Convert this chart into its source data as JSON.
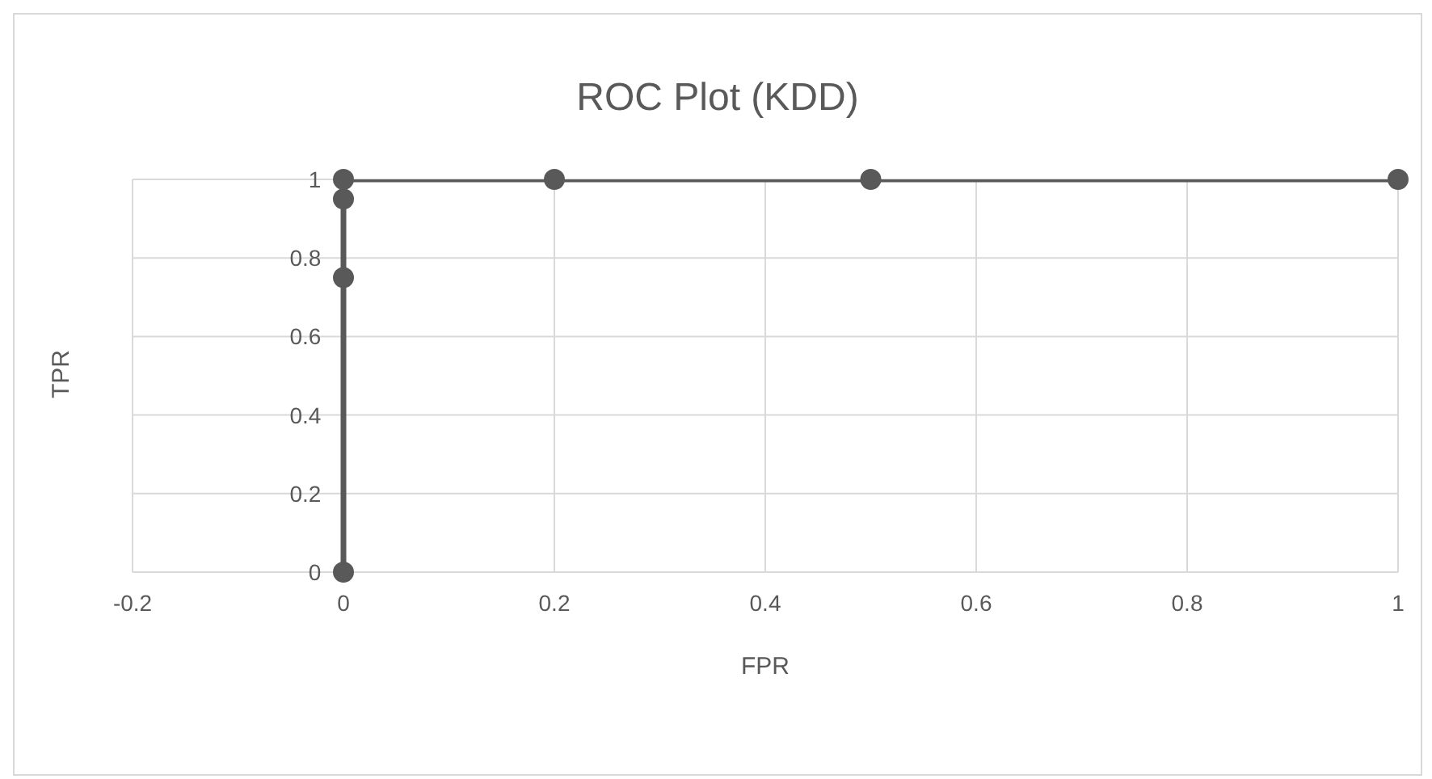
{
  "chart_data": {
    "type": "line",
    "title": "ROC Plot (KDD)",
    "xlabel": "FPR",
    "ylabel": "TPR",
    "x": [
      0,
      0,
      0,
      0,
      0.2,
      0.5,
      1
    ],
    "series": [
      {
        "color": "#595959",
        "values": [
          0,
          0.75,
          0.95,
          1,
          1,
          1,
          1
        ]
      }
    ],
    "xlim": [
      -0.2,
      1
    ],
    "xticks": [
      -0.2,
      0,
      0.2,
      0.4,
      0.6,
      0.8,
      1
    ],
    "ylim": [
      0,
      1
    ],
    "yticks": [
      0,
      0.2,
      0.4,
      0.6,
      0.8,
      1
    ],
    "grid": true,
    "legend": false,
    "marker": "circle",
    "line_style": "solid"
  }
}
